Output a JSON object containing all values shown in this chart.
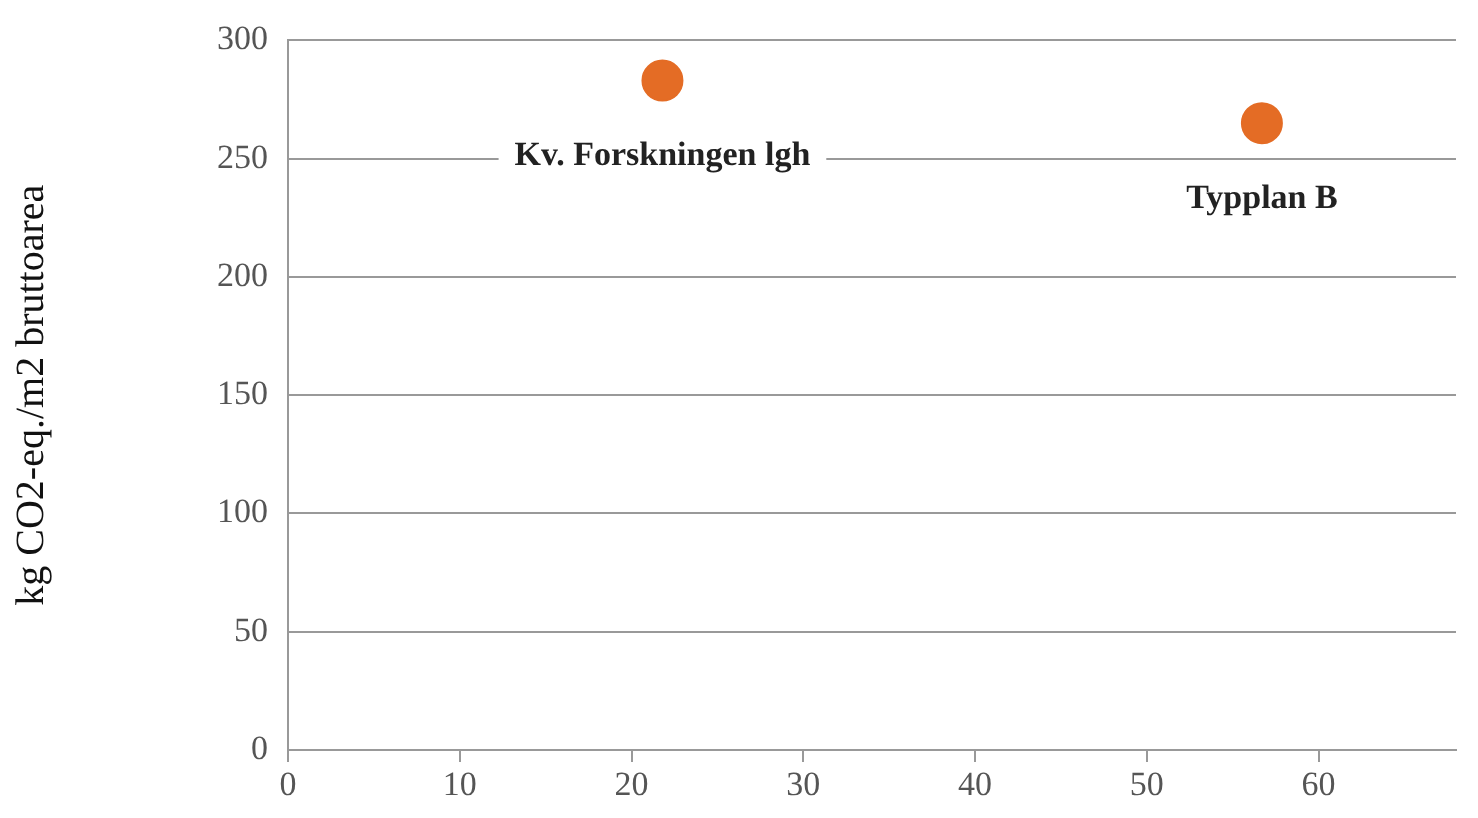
{
  "chart_data": {
    "type": "scatter",
    "ylabel": "kg CO2-eq./m2 bruttoarea",
    "x": [
      21.8,
      56.7
    ],
    "values": [
      283,
      265
    ],
    "color": "#e46c25",
    "marker": "circle",
    "xlim": [
      0,
      68
    ],
    "xticks": [
      0,
      10,
      20,
      30,
      40,
      50,
      60
    ],
    "ylim": [
      0,
      300
    ],
    "yticks": [
      0,
      50,
      100,
      150,
      200,
      250,
      300
    ],
    "grid": "y",
    "legend": false,
    "annotations": [
      {
        "text": "Kv. Forskningen lgh",
        "x": 21.8,
        "y": 283
      },
      {
        "text": "Typplan B",
        "x": 56.7,
        "y": 265
      }
    ]
  }
}
